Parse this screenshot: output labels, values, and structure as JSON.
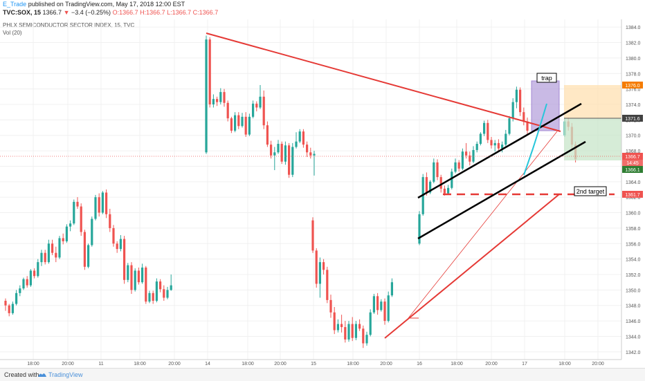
{
  "header": {
    "author": "E_Trade",
    "published": "published on TradingView.com, May 17, 2018 12:00 EST",
    "symbol": "TVC:SOX, 15",
    "price": "1366.7",
    "change": "−3.4 (−0.25%)",
    "ohlc": "O:1366.7 H:1366.7 L:1366.7 C:1366.7",
    "index_name": "PHLX SEMICONDUCTOR SECTOR INDEX, 15, TVC",
    "volume_label": "Vol (20)"
  },
  "footer": {
    "created_with": "Created with",
    "brand": "TradingView"
  },
  "annotations": {
    "trap": "trap",
    "second_target": "2nd target"
  },
  "price_tags": {
    "top": "1376.0",
    "mid": "1371.6",
    "last": "1366.7",
    "countdown": "14:45",
    "low": "1366.1",
    "target": "1361.7"
  },
  "colors": {
    "up": "#26a69a",
    "down": "#ef5350",
    "trendline_red": "#e53935",
    "trendline_black": "#000000",
    "trap_box": "#9575cd",
    "cyan": "#26c6da",
    "target_box": "#f57c00",
    "stop_box": "#388e3c"
  },
  "chart_data": {
    "type": "candlestick",
    "y_ticks": [
      "1384.0",
      "1382.0",
      "1380.0",
      "1378.0",
      "1376.0",
      "1374.0",
      "1372.0",
      "1370.0",
      "1368.0",
      "1366.0",
      "1364.0",
      "1362.0",
      "1360.0",
      "1358.0",
      "1356.0",
      "1354.0",
      "1352.0",
      "1350.0",
      "1348.0",
      "1346.0",
      "1344.0",
      "1342.0"
    ],
    "x_ticks": [
      "18:00",
      "20:00",
      "11",
      "18:00",
      "20:00",
      "14",
      "18:00",
      "20:00",
      "15",
      "18:00",
      "20:00",
      "16",
      "18:00",
      "20:00",
      "17",
      "18:00",
      "20:00"
    ],
    "ylim": [
      1341,
      1385
    ],
    "candles": [
      [
        1348.6,
        1348.9,
        1347.3,
        1348.0
      ],
      [
        1348.0,
        1348.2,
        1346.6,
        1347.0
      ],
      [
        1347.0,
        1348.5,
        1346.8,
        1348.2
      ],
      [
        1348.2,
        1350.0,
        1348.0,
        1349.6
      ],
      [
        1349.6,
        1350.6,
        1349.2,
        1350.2
      ],
      [
        1350.2,
        1351.6,
        1350.0,
        1351.4
      ],
      [
        1351.4,
        1351.8,
        1350.3,
        1350.6
      ],
      [
        1350.6,
        1352.7,
        1350.4,
        1352.5
      ],
      [
        1352.5,
        1352.8,
        1351.5,
        1351.8
      ],
      [
        1351.8,
        1354.0,
        1351.6,
        1353.6
      ],
      [
        1353.6,
        1355.2,
        1353.1,
        1354.8
      ],
      [
        1354.8,
        1355.2,
        1353.3,
        1353.6
      ],
      [
        1353.6,
        1356.5,
        1353.4,
        1356.0
      ],
      [
        1356.0,
        1356.5,
        1354.5,
        1354.8
      ],
      [
        1354.8,
        1355.6,
        1353.6,
        1354.2
      ],
      [
        1354.2,
        1357.0,
        1354.0,
        1356.7
      ],
      [
        1356.7,
        1357.3,
        1355.9,
        1356.3
      ],
      [
        1356.3,
        1358.5,
        1356.1,
        1358.2
      ],
      [
        1358.2,
        1359.0,
        1357.6,
        1358.6
      ],
      [
        1358.6,
        1361.7,
        1358.4,
        1361.4
      ],
      [
        1361.4,
        1362.0,
        1360.5,
        1360.8
      ],
      [
        1360.8,
        1361.2,
        1357.0,
        1357.5
      ],
      [
        1357.5,
        1357.8,
        1352.6,
        1353.0
      ],
      [
        1353.0,
        1356.0,
        1352.8,
        1355.8
      ],
      [
        1355.8,
        1359.5,
        1355.6,
        1359.2
      ],
      [
        1359.2,
        1362.3,
        1359.0,
        1362.0
      ],
      [
        1362.0,
        1362.5,
        1359.5,
        1360.0
      ],
      [
        1360.0,
        1362.8,
        1359.8,
        1362.6
      ],
      [
        1362.6,
        1363.0,
        1359.3,
        1359.8
      ],
      [
        1359.8,
        1360.5,
        1357.5,
        1358.0
      ],
      [
        1358.0,
        1358.4,
        1355.6,
        1356.0
      ],
      [
        1356.0,
        1356.3,
        1354.8,
        1355.3
      ],
      [
        1355.3,
        1357.1,
        1355.0,
        1356.6
      ],
      [
        1356.6,
        1357.0,
        1350.8,
        1351.3
      ],
      [
        1351.3,
        1353.5,
        1351.0,
        1353.2
      ],
      [
        1353.2,
        1353.6,
        1349.5,
        1350.0
      ],
      [
        1350.0,
        1352.8,
        1349.8,
        1352.5
      ],
      [
        1352.5,
        1352.9,
        1350.7,
        1351.0
      ],
      [
        1351.0,
        1353.4,
        1350.8,
        1352.9
      ],
      [
        1352.9,
        1353.1,
        1348.2,
        1348.5
      ],
      [
        1348.5,
        1349.9,
        1348.3,
        1349.6
      ],
      [
        1349.6,
        1349.9,
        1348.2,
        1348.6
      ],
      [
        1348.6,
        1351.5,
        1348.4,
        1351.1
      ],
      [
        1351.1,
        1351.4,
        1349.7,
        1350.1
      ],
      [
        1350.1,
        1350.6,
        1348.6,
        1349.0
      ],
      [
        1349.0,
        1350.4,
        1348.8,
        1350.0
      ],
      [
        1350.0,
        1352.0,
        1349.9,
        1350.6
      ],
      [
        1367.8,
        1382.9,
        1367.6,
        1382.4
      ],
      [
        1382.4,
        1382.7,
        1373.6,
        1374.0
      ],
      [
        1374.0,
        1375.3,
        1373.6,
        1374.7
      ],
      [
        1374.7,
        1375.0,
        1373.8,
        1374.3
      ],
      [
        1374.3,
        1376.1,
        1374.0,
        1375.6
      ],
      [
        1375.6,
        1376.0,
        1373.7,
        1374.2
      ],
      [
        1374.2,
        1374.5,
        1371.8,
        1372.2
      ],
      [
        1372.2,
        1372.4,
        1370.3,
        1370.6
      ],
      [
        1370.6,
        1373.0,
        1370.4,
        1372.6
      ],
      [
        1372.6,
        1373.0,
        1370.8,
        1371.2
      ],
      [
        1371.2,
        1372.9,
        1371.0,
        1372.4
      ],
      [
        1372.4,
        1373.0,
        1369.8,
        1370.1
      ],
      [
        1370.1,
        1372.8,
        1369.9,
        1372.4
      ],
      [
        1372.4,
        1374.5,
        1372.2,
        1374.1
      ],
      [
        1374.1,
        1374.4,
        1373.1,
        1373.6
      ],
      [
        1373.6,
        1376.5,
        1373.4,
        1375.0
      ],
      [
        1375.0,
        1375.8,
        1370.8,
        1371.3
      ],
      [
        1371.3,
        1371.8,
        1368.5,
        1368.8
      ],
      [
        1368.8,
        1369.3,
        1367.0,
        1367.4
      ],
      [
        1367.4,
        1368.5,
        1365.5,
        1367.8
      ],
      [
        1367.8,
        1369.4,
        1367.6,
        1368.9
      ],
      [
        1368.9,
        1369.2,
        1366.3,
        1366.6
      ],
      [
        1366.6,
        1369.2,
        1366.2,
        1368.7
      ],
      [
        1368.7,
        1369.0,
        1364.5,
        1364.9
      ],
      [
        1364.9,
        1369.0,
        1364.6,
        1368.5
      ],
      [
        1368.5,
        1370.4,
        1368.3,
        1369.2
      ],
      [
        1369.2,
        1370.8,
        1369.0,
        1370.5
      ],
      [
        1370.5,
        1370.8,
        1368.4,
        1368.8
      ],
      [
        1368.8,
        1369.2,
        1367.2,
        1367.8
      ],
      [
        1367.8,
        1368.4,
        1367.0,
        1367.4
      ],
      [
        1367.4,
        1368.0,
        1364.8,
        1367.6
      ],
      [
        1359.0,
        1359.4,
        1354.8,
        1355.1
      ],
      [
        1355.1,
        1355.4,
        1350.3,
        1350.8
      ],
      [
        1350.8,
        1354.2,
        1349.0,
        1353.6
      ],
      [
        1353.6,
        1354.0,
        1352.0,
        1352.6
      ],
      [
        1352.6,
        1353.0,
        1348.3,
        1348.7
      ],
      [
        1348.7,
        1349.4,
        1346.4,
        1347.1
      ],
      [
        1347.1,
        1347.8,
        1344.3,
        1344.8
      ],
      [
        1344.8,
        1346.2,
        1344.5,
        1345.6
      ],
      [
        1345.6,
        1346.8,
        1344.5,
        1345.2
      ],
      [
        1345.2,
        1346.0,
        1343.2,
        1343.6
      ],
      [
        1343.6,
        1346.0,
        1343.3,
        1345.6
      ],
      [
        1345.6,
        1346.5,
        1343.4,
        1343.8
      ],
      [
        1343.8,
        1346.0,
        1343.5,
        1345.6
      ],
      [
        1345.6,
        1346.2,
        1344.7,
        1345.0
      ],
      [
        1345.0,
        1345.4,
        1342.5,
        1343.1
      ],
      [
        1343.1,
        1344.6,
        1342.8,
        1344.2
      ],
      [
        1344.2,
        1347.5,
        1344.0,
        1347.1
      ],
      [
        1347.1,
        1349.5,
        1346.9,
        1349.2
      ],
      [
        1349.2,
        1349.6,
        1346.8,
        1347.4
      ],
      [
        1347.4,
        1348.8,
        1347.2,
        1348.5
      ],
      [
        1348.5,
        1348.9,
        1345.5,
        1346.0
      ],
      [
        1346.0,
        1349.8,
        1345.8,
        1349.3
      ],
      [
        1349.3,
        1351.5,
        1349.1,
        1351.0
      ],
      [
        1356.0,
        1360.2,
        1355.8,
        1359.8
      ],
      [
        1359.8,
        1365.0,
        1359.6,
        1364.6
      ],
      [
        1364.6,
        1365.2,
        1362.2,
        1362.6
      ],
      [
        1362.6,
        1364.2,
        1362.4,
        1364.0
      ],
      [
        1364.0,
        1367.0,
        1363.8,
        1366.5
      ],
      [
        1366.5,
        1366.9,
        1364.2,
        1364.6
      ],
      [
        1364.6,
        1364.9,
        1362.6,
        1363.1
      ],
      [
        1363.1,
        1363.5,
        1362.2,
        1362.5
      ],
      [
        1362.5,
        1363.6,
        1362.3,
        1363.2
      ],
      [
        1363.2,
        1365.7,
        1363.0,
        1365.3
      ],
      [
        1365.3,
        1367.0,
        1365.1,
        1366.5
      ],
      [
        1366.5,
        1366.8,
        1365.3,
        1365.7
      ],
      [
        1365.7,
        1368.3,
        1365.5,
        1367.9
      ],
      [
        1367.9,
        1369.0,
        1367.0,
        1367.4
      ],
      [
        1367.4,
        1367.9,
        1366.1,
        1366.6
      ],
      [
        1366.6,
        1368.6,
        1366.4,
        1368.1
      ],
      [
        1368.1,
        1369.2,
        1367.8,
        1368.9
      ],
      [
        1368.9,
        1370.4,
        1368.7,
        1370.2
      ],
      [
        1370.2,
        1371.9,
        1369.9,
        1371.6
      ],
      [
        1371.6,
        1372.0,
        1369.0,
        1369.4
      ],
      [
        1369.4,
        1369.8,
        1368.3,
        1368.7
      ],
      [
        1368.7,
        1369.4,
        1367.9,
        1369.0
      ],
      [
        1369.0,
        1369.5,
        1368.0,
        1368.3
      ],
      [
        1368.3,
        1369.2,
        1367.8,
        1368.8
      ],
      [
        1368.8,
        1370.7,
        1368.6,
        1370.2
      ],
      [
        1370.2,
        1372.5,
        1370.0,
        1372.2
      ],
      [
        1372.2,
        1374.8,
        1371.8,
        1374.3
      ],
      [
        1374.3,
        1376.3,
        1373.5,
        1375.9
      ],
      [
        1375.9,
        1376.2,
        1372.5,
        1373.0
      ],
      [
        1373.0,
        1373.6,
        1371.3,
        1371.8
      ],
      [
        1371.8,
        1372.3,
        1370.2,
        1370.6
      ],
      [
        1370.0,
        1372.3,
        1369.8,
        1371.8
      ],
      [
        1371.8,
        1372.3,
        1370.6,
        1371.1
      ],
      [
        1371.1,
        1371.6,
        1368.3,
        1368.8
      ],
      [
        1368.8,
        1369.2,
        1366.5,
        1366.9
      ]
    ]
  }
}
